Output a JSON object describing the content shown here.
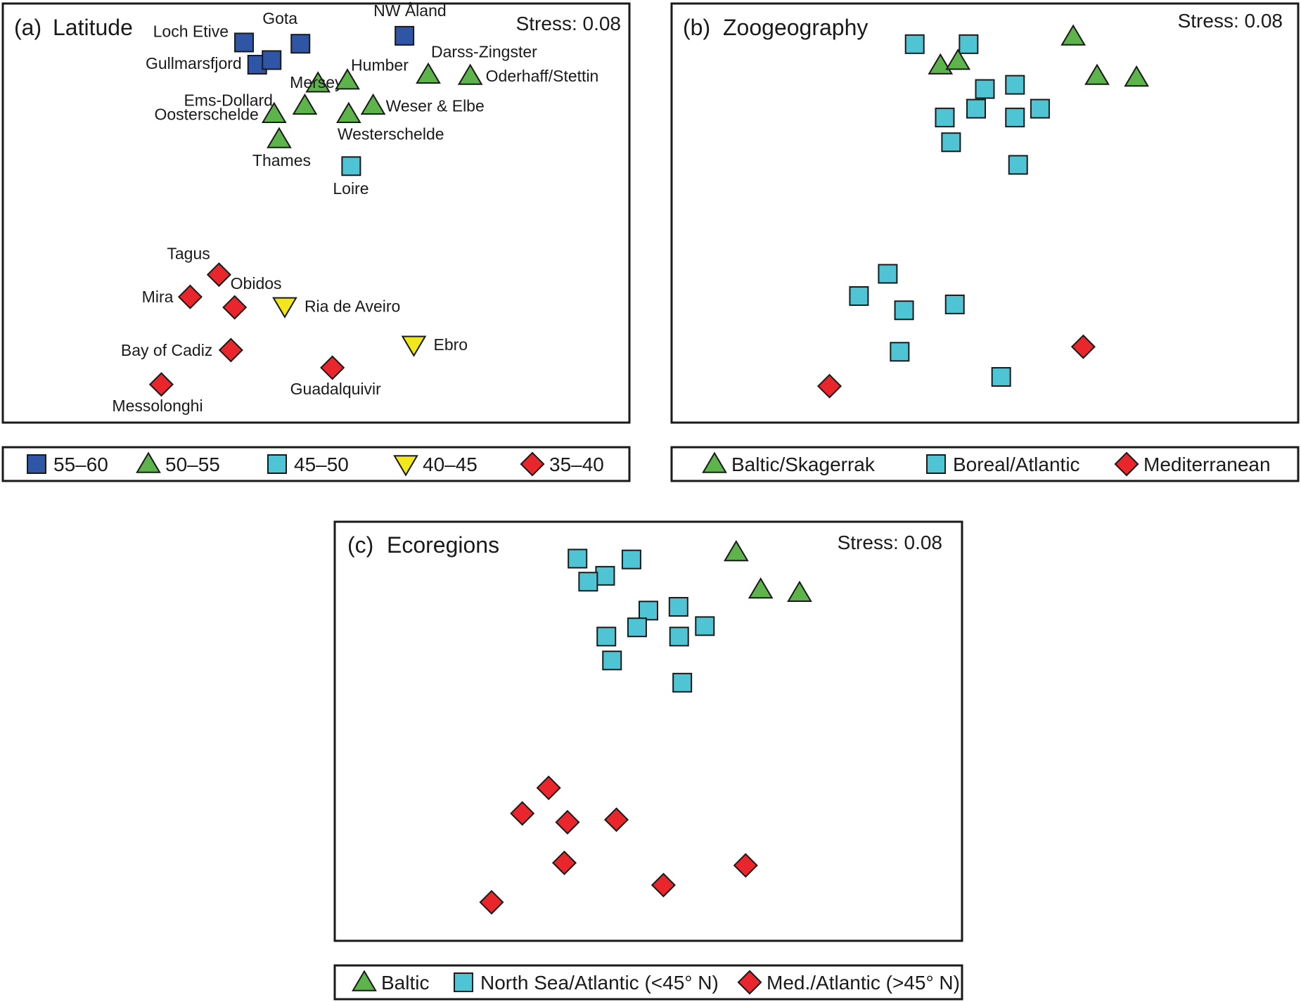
{
  "colors": {
    "lat_55_60": "#2f55a6",
    "lat_50_55": "#5db44b",
    "lat_45_50": "#4fc4d4",
    "lat_40_45": "#f2e61c",
    "lat_35_40": "#e8262b",
    "stroke": "#1a1a1a"
  },
  "chart_data": [
    {
      "type": "scatter",
      "panel": "(a)",
      "title": "Latitude",
      "stress": "Stress: 0.08",
      "xlim": [
        0,
        100
      ],
      "ylim": [
        0,
        100
      ],
      "legend_placement": "below",
      "legend": [
        {
          "label": "55–60",
          "shape": "square",
          "color": "#2f55a6"
        },
        {
          "label": "50–55",
          "shape": "triangle",
          "color": "#5db44b"
        },
        {
          "label": "45–50",
          "shape": "square",
          "color": "#4fc4d4"
        },
        {
          "label": "40–45",
          "shape": "triangle-down",
          "color": "#f2e61c"
        },
        {
          "label": "35–40",
          "shape": "diamond",
          "color": "#e8262b"
        }
      ],
      "points": [
        {
          "label": "Loch Etive",
          "x": 38.5,
          "y": 90.7,
          "group": "55–60"
        },
        {
          "label": "Gota",
          "x": 47.5,
          "y": 90.4,
          "group": "55–60"
        },
        {
          "label": "Gullmarsfjord",
          "x": 40.6,
          "y": 85.4,
          "group": "55–60"
        },
        {
          "label": "",
          "x": 42.9,
          "y": 86.5,
          "group": "55–60"
        },
        {
          "label": "NW Åland",
          "x": 64.1,
          "y": 92.3,
          "group": "55–60"
        },
        {
          "label": "Mersey",
          "x": 50.3,
          "y": 80.9,
          "group": "50–55"
        },
        {
          "label": "Humber",
          "x": 55.0,
          "y": 81.6,
          "group": "50–55"
        },
        {
          "label": "Darss-Zingster",
          "x": 67.9,
          "y": 83.0,
          "group": "50–55"
        },
        {
          "label": "Oderhaff/Stettin",
          "x": 74.6,
          "y": 82.7,
          "group": "50–55"
        },
        {
          "label": "Ems-Dollard",
          "x": 48.2,
          "y": 75.6,
          "group": "50–55"
        },
        {
          "label": "Weser & Elbe",
          "x": 59.1,
          "y": 75.6,
          "group": "50–55"
        },
        {
          "label": "Oosterschelde",
          "x": 43.3,
          "y": 73.6,
          "group": "50–55"
        },
        {
          "label": "Westerschelde",
          "x": 55.2,
          "y": 73.6,
          "group": "50–55"
        },
        {
          "label": "Thames",
          "x": 44.1,
          "y": 67.6,
          "group": "50–55"
        },
        {
          "label": "Loire",
          "x": 55.6,
          "y": 61.2,
          "group": "45–50"
        },
        {
          "label": "Tagus",
          "x": 34.5,
          "y": 35.3,
          "group": "35–40"
        },
        {
          "label": "Mira",
          "x": 29.9,
          "y": 30.0,
          "group": "35–40"
        },
        {
          "label": "Obidos",
          "x": 37.0,
          "y": 27.5,
          "group": "35–40"
        },
        {
          "label": "Ria de Aveiro",
          "x": 45.0,
          "y": 27.8,
          "group": "40–45"
        },
        {
          "label": "Bay of Cadiz",
          "x": 36.4,
          "y": 17.3,
          "group": "35–40"
        },
        {
          "label": "Ebro",
          "x": 65.6,
          "y": 18.6,
          "group": "40–45"
        },
        {
          "label": "Guadalquivir",
          "x": 52.6,
          "y": 13.1,
          "group": "35–40"
        },
        {
          "label": "Messolonghi",
          "x": 25.3,
          "y": 9.1,
          "group": "35–40"
        }
      ]
    },
    {
      "type": "scatter",
      "panel": "(b)",
      "title": "Zoogeography",
      "stress": "Stress: 0.08",
      "xlim": [
        0,
        100
      ],
      "ylim": [
        0,
        100
      ],
      "legend_placement": "below",
      "legend": [
        {
          "label": "Baltic/Skagerrak",
          "shape": "triangle",
          "color": "#5db44b"
        },
        {
          "label": "Boreal/Atlantic",
          "shape": "square",
          "color": "#4fc4d4"
        },
        {
          "label": "Mediterranean",
          "shape": "diamond",
          "color": "#e8262b"
        }
      ],
      "points": [
        {
          "x": 38.8,
          "y": 90.3,
          "group": "Boreal/Atlantic"
        },
        {
          "x": 47.4,
          "y": 90.3,
          "group": "Boreal/Atlantic"
        },
        {
          "x": 42.9,
          "y": 85.2,
          "group": "Baltic/Skagerrak"
        },
        {
          "x": 45.7,
          "y": 86.3,
          "group": "Baltic/Skagerrak"
        },
        {
          "x": 64.1,
          "y": 92.1,
          "group": "Baltic/Skagerrak"
        },
        {
          "x": 67.9,
          "y": 82.7,
          "group": "Baltic/Skagerrak"
        },
        {
          "x": 74.2,
          "y": 82.3,
          "group": "Baltic/Skagerrak"
        },
        {
          "x": 50.0,
          "y": 79.6,
          "group": "Boreal/Atlantic"
        },
        {
          "x": 54.8,
          "y": 80.6,
          "group": "Boreal/Atlantic"
        },
        {
          "x": 48.6,
          "y": 74.9,
          "group": "Boreal/Atlantic"
        },
        {
          "x": 58.8,
          "y": 74.9,
          "group": "Boreal/Atlantic"
        },
        {
          "x": 43.6,
          "y": 72.8,
          "group": "Boreal/Atlantic"
        },
        {
          "x": 54.8,
          "y": 72.8,
          "group": "Boreal/Atlantic"
        },
        {
          "x": 44.6,
          "y": 66.9,
          "group": "Boreal/Atlantic"
        },
        {
          "x": 55.3,
          "y": 61.5,
          "group": "Boreal/Atlantic"
        },
        {
          "x": 34.5,
          "y": 35.5,
          "group": "Boreal/Atlantic"
        },
        {
          "x": 29.9,
          "y": 30.2,
          "group": "Boreal/Atlantic"
        },
        {
          "x": 37.1,
          "y": 26.8,
          "group": "Boreal/Atlantic"
        },
        {
          "x": 45.2,
          "y": 28.2,
          "group": "Boreal/Atlantic"
        },
        {
          "x": 36.4,
          "y": 16.9,
          "group": "Boreal/Atlantic"
        },
        {
          "x": 65.7,
          "y": 18.1,
          "group": "Mediterranean"
        },
        {
          "x": 52.6,
          "y": 10.9,
          "group": "Boreal/Atlantic"
        },
        {
          "x": 25.2,
          "y": 8.7,
          "group": "Mediterranean"
        }
      ]
    },
    {
      "type": "scatter",
      "panel": "(c)",
      "title": "Ecoregions",
      "stress": "Stress: 0.08",
      "xlim": [
        0,
        100
      ],
      "ylim": [
        0,
        100
      ],
      "legend_placement": "below",
      "legend": [
        {
          "label": "Baltic",
          "shape": "triangle",
          "color": "#5db44b"
        },
        {
          "label": "North Sea/Atlantic (<45° N)",
          "shape": "square",
          "color": "#4fc4d4"
        },
        {
          "label": "Med./Atlantic (>45° N)",
          "shape": "diamond",
          "color": "#e8262b"
        }
      ],
      "points": [
        {
          "x": 38.7,
          "y": 91.2,
          "group": "North Sea/Atlantic (<45° N)"
        },
        {
          "x": 47.3,
          "y": 91.0,
          "group": "North Sea/Atlantic (<45° N)"
        },
        {
          "x": 43.1,
          "y": 87.1,
          "group": "North Sea/Atlantic (<45° N)"
        },
        {
          "x": 40.4,
          "y": 85.7,
          "group": "North Sea/Atlantic (<45° N)"
        },
        {
          "x": 64.0,
          "y": 92.7,
          "group": "Baltic"
        },
        {
          "x": 67.9,
          "y": 83.8,
          "group": "Baltic"
        },
        {
          "x": 74.1,
          "y": 83.0,
          "group": "Baltic"
        },
        {
          "x": 50.0,
          "y": 78.8,
          "group": "North Sea/Atlantic (<45° N)"
        },
        {
          "x": 54.8,
          "y": 79.7,
          "group": "North Sea/Atlantic (<45° N)"
        },
        {
          "x": 48.2,
          "y": 74.8,
          "group": "North Sea/Atlantic (<45° N)"
        },
        {
          "x": 59.0,
          "y": 75.1,
          "group": "North Sea/Atlantic (<45° N)"
        },
        {
          "x": 43.3,
          "y": 72.6,
          "group": "North Sea/Atlantic (<45° N)"
        },
        {
          "x": 54.9,
          "y": 72.6,
          "group": "North Sea/Atlantic (<45° N)"
        },
        {
          "x": 44.2,
          "y": 66.9,
          "group": "North Sea/Atlantic (<45° N)"
        },
        {
          "x": 55.4,
          "y": 61.6,
          "group": "North Sea/Atlantic (<45° N)"
        },
        {
          "x": 34.1,
          "y": 36.5,
          "group": "Med./Atlantic (>45° N)"
        },
        {
          "x": 29.9,
          "y": 30.4,
          "group": "Med./Atlantic (>45° N)"
        },
        {
          "x": 37.1,
          "y": 28.3,
          "group": "Med./Atlantic (>45° N)"
        },
        {
          "x": 44.9,
          "y": 28.9,
          "group": "Med./Atlantic (>45° N)"
        },
        {
          "x": 36.6,
          "y": 18.6,
          "group": "Med./Atlantic (>45° N)"
        },
        {
          "x": 65.5,
          "y": 18.0,
          "group": "Med./Atlantic (>45° N)"
        },
        {
          "x": 52.4,
          "y": 13.3,
          "group": "Med./Atlantic (>45° N)"
        },
        {
          "x": 25.0,
          "y": 9.2,
          "group": "Med./Atlantic (>45° N)"
        }
      ]
    }
  ]
}
